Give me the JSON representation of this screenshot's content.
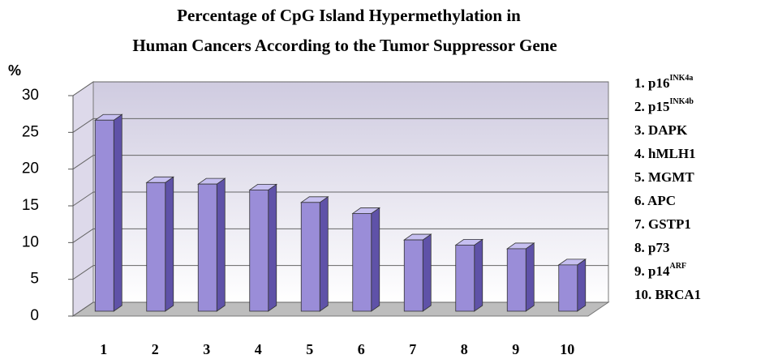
{
  "chart_data": {
    "type": "bar3d",
    "title": [
      "Percentage of CpG Island Hypermethylation in",
      "Human  Cancers According to the Tumor Suppressor Gene"
    ],
    "y_label": "%",
    "categories": [
      "1",
      "2",
      "3",
      "4",
      "5",
      "6",
      "7",
      "8",
      "9",
      "10"
    ],
    "values": [
      26,
      17.5,
      17.3,
      16.5,
      14.8,
      13.3,
      9.7,
      9,
      8.5,
      6.3
    ],
    "color": "#9a8dd8",
    "ylim": [
      0,
      30
    ],
    "yticks": [
      0,
      5,
      10,
      15,
      20,
      25,
      30
    ],
    "grid": true,
    "legend": [
      {
        "text": "1. p16",
        "sup": "INK4a"
      },
      {
        "text": "2. p15",
        "sup": "INK4b"
      },
      {
        "text": "3. DAPK"
      },
      {
        "text": "4. hMLH1"
      },
      {
        "text": "5. MGMT"
      },
      {
        "text": "6. APC"
      },
      {
        "text": "7. GSTP1"
      },
      {
        "text": "8. p73"
      },
      {
        "text": "9. p14",
        "sup": "ARF"
      },
      {
        "text": "10. BRCA1"
      }
    ]
  }
}
